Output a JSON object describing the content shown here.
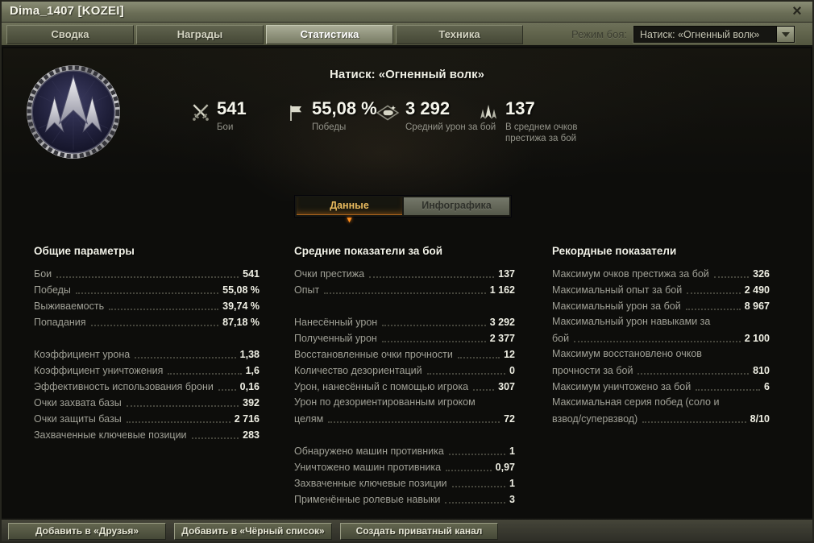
{
  "window": {
    "title": "Dima_1407 [KOZEI]",
    "close_glyph": "×"
  },
  "tabbar": {
    "tabs": [
      {
        "label": "Сводка",
        "active": false
      },
      {
        "label": "Награды",
        "active": false
      },
      {
        "label": "Статистика",
        "active": true
      },
      {
        "label": "Техника",
        "active": false
      }
    ],
    "mode_label": "Режим боя:",
    "mode_value": "Натиск: «Огненный волк»"
  },
  "header": {
    "title": "Натиск: «Огненный волк»",
    "stats": [
      {
        "icon": "crossed-swords-icon",
        "value": "541",
        "label": "Бои"
      },
      {
        "icon": "flag-icon",
        "value": "55,08 %",
        "label": "Победы"
      },
      {
        "icon": "shell-icon",
        "value": "3 292",
        "label": "Средний урон за бой"
      },
      {
        "icon": "prestige-wings-icon",
        "value": "137",
        "label": "В среднем очков престижа за бой"
      }
    ]
  },
  "subtabs": [
    {
      "label": "Данные",
      "active": true
    },
    {
      "label": "Инфографика",
      "active": false
    }
  ],
  "columns": [
    {
      "title": "Общие параметры",
      "groups": [
        [
          {
            "label": "Бои",
            "value": "541"
          },
          {
            "label": "Победы",
            "value": "55,08 %"
          },
          {
            "label": "Выживаемость",
            "value": "39,74 %"
          },
          {
            "label": "Попадания",
            "value": "87,18 %"
          }
        ],
        [
          {
            "label": "Коэффициент урона",
            "value": "1,38"
          },
          {
            "label": "Коэффициент уничтожения",
            "value": "1,6"
          },
          {
            "label": "Эффективность использования брони",
            "value": "0,16"
          },
          {
            "label": "Очки захвата базы",
            "value": "392"
          },
          {
            "label": "Очки защиты базы",
            "value": "2 716"
          },
          {
            "label": "Захваченные ключевые позиции",
            "value": "283"
          }
        ]
      ]
    },
    {
      "title": "Средние показатели за бой",
      "groups": [
        [
          {
            "label": "Очки престижа",
            "value": "137"
          },
          {
            "label": "Опыт",
            "value": "1 162"
          }
        ],
        [
          {
            "label": "Нанесённый урон",
            "value": "3 292"
          },
          {
            "label": "Полученный урон",
            "value": "2 377"
          },
          {
            "label": "Восстановленные очки прочности",
            "value": "12"
          },
          {
            "label": "Количество дезориентаций",
            "value": "0"
          },
          {
            "label": "Урон, нанесённый с помощью игрока",
            "value": "307"
          },
          {
            "label": "Урон по дезориентированным игроком",
            "label2": "целям",
            "value": "72"
          }
        ],
        [
          {
            "label": "Обнаружено машин противника",
            "value": "1"
          },
          {
            "label": "Уничтожено машин противника",
            "value": "0,97"
          },
          {
            "label": "Захваченные ключевые позиции",
            "value": "1"
          },
          {
            "label": "Применённые ролевые навыки",
            "value": "3"
          }
        ]
      ]
    },
    {
      "title": "Рекордные показатели",
      "groups": [
        [
          {
            "label": "Максимум очков престижа за бой",
            "value": "326"
          },
          {
            "label": "Максимальный опыт за бой",
            "value": "2 490"
          },
          {
            "label": "Максимальный урон за бой",
            "value": "8 967"
          },
          {
            "label": "Максимальный урон навыками за",
            "label2": "бой",
            "value": "2 100"
          },
          {
            "label": "Максимум восстановлено очков",
            "label2": "прочности за бой",
            "value": "810"
          },
          {
            "label": "Максимум уничтожено за бой",
            "value": "6"
          },
          {
            "label": "Максимальная серия побед (соло и",
            "label2": "взвод/супервзвод)",
            "value": "8/10"
          }
        ]
      ]
    }
  ],
  "footer": {
    "buttons": [
      "Добавить в «Друзья»",
      "Добавить в «Чёрный список»",
      "Создать приватный канал"
    ]
  }
}
